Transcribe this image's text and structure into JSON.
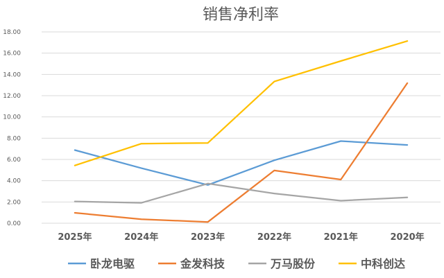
{
  "chart_data": {
    "type": "line",
    "title": "销售净利率",
    "categories": [
      "2025年",
      "2024年",
      "2023年",
      "2022年",
      "2021年",
      "2020年"
    ],
    "ylim": [
      0,
      18
    ],
    "yticks": [
      "0.00",
      "2.00",
      "4.00",
      "6.00",
      "8.00",
      "10.00",
      "12.00",
      "14.00",
      "16.00",
      "18.00"
    ],
    "grid": true,
    "legend_position": "bottom",
    "series": [
      {
        "name": "卧龙电驱",
        "color": "#5b9bd5",
        "values": [
          6.88,
          5.18,
          3.6,
          5.92,
          7.73,
          7.36
        ]
      },
      {
        "name": "金发科技",
        "color": "#ed7d31",
        "values": [
          0.98,
          0.38,
          0.12,
          4.96,
          4.11,
          13.18
        ]
      },
      {
        "name": "万马股份",
        "color": "#a5a5a5",
        "values": [
          2.05,
          1.92,
          3.73,
          2.8,
          2.12,
          2.43
        ]
      },
      {
        "name": "中科创达",
        "color": "#ffc000",
        "values": [
          5.43,
          7.49,
          7.55,
          13.33,
          15.26,
          17.14
        ]
      }
    ]
  }
}
